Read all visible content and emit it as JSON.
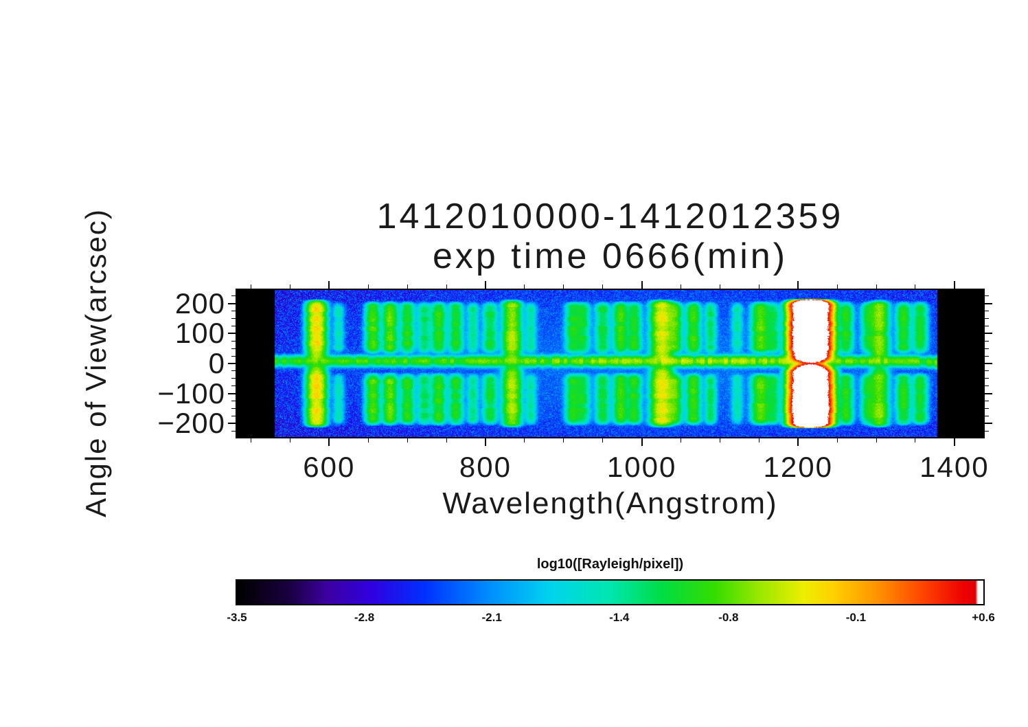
{
  "title": {
    "line1": "1412010000-1412012359",
    "line2": "exp time 0666(min)"
  },
  "axes": {
    "x": {
      "label": "Wavelength(Angstrom)",
      "ticks": [
        600,
        800,
        1000,
        1200,
        1400
      ],
      "tick_labels": [
        "600",
        "800",
        "1000",
        "1200",
        "1400"
      ],
      "minor_step": 50,
      "range": [
        482,
        1437
      ]
    },
    "y": {
      "label": "Angle of View(arcsec)",
      "ticks": [
        200,
        100,
        0,
        -100,
        -200
      ],
      "tick_labels": [
        "200",
        "100",
        "0",
        "−100",
        "−200"
      ],
      "minor_step": 25,
      "range": [
        -245,
        245
      ]
    }
  },
  "colorbar": {
    "label": "log10([Rayleigh/pixel])",
    "tick_values": [
      -3.5,
      -2.8,
      -2.1,
      -1.4,
      -0.8,
      -0.1,
      0.6
    ],
    "tick_labels": [
      "-3.5",
      "-2.8",
      "-2.1",
      "-1.4",
      "-0.8",
      "-0.1",
      "+0.6"
    ],
    "range": [
      -3.5,
      0.6
    ]
  },
  "chart_data": {
    "type": "heatmap",
    "title": "1412010000-1412012359 exp time 0666(min)",
    "xlabel": "Wavelength(Angstrom)",
    "ylabel": "Angle of View(arcsec)",
    "zlabel": "log10([Rayleigh/pixel])",
    "x_range": [
      482,
      1437
    ],
    "detector_x_range": [
      530,
      1378
    ],
    "y_range": [
      -245,
      245
    ],
    "z_range": [
      -3.5,
      0.6
    ],
    "background_log10": -2.9,
    "colormap_stops": [
      [
        0.0,
        "#000000"
      ],
      [
        0.07,
        "#1a0040"
      ],
      [
        0.12,
        "#3c00a0"
      ],
      [
        0.18,
        "#3000e0"
      ],
      [
        0.25,
        "#0030ff"
      ],
      [
        0.34,
        "#0090ff"
      ],
      [
        0.42,
        "#00d4ee"
      ],
      [
        0.5,
        "#00e6b0"
      ],
      [
        0.57,
        "#00dd44"
      ],
      [
        0.64,
        "#33dd00"
      ],
      [
        0.7,
        "#99e800"
      ],
      [
        0.76,
        "#eeee00"
      ],
      [
        0.8,
        "#ffd000"
      ],
      [
        0.86,
        "#ff9100"
      ],
      [
        0.92,
        "#ff4400"
      ],
      [
        0.975,
        "#ee0000"
      ],
      [
        0.99,
        "#dd0000"
      ],
      [
        0.993,
        "#ffffff"
      ],
      [
        1.0,
        "#ffffff"
      ]
    ],
    "emission_lines": [
      {
        "wavelength": 584,
        "peak": -0.3,
        "sigma": 6,
        "shape": "full"
      },
      {
        "wavelength": 612,
        "peak": -1.6,
        "sigma": 4,
        "shape": "lobes"
      },
      {
        "wavelength": 656,
        "peak": -0.85,
        "sigma": 5,
        "shape": "lobes"
      },
      {
        "wavelength": 678,
        "peak": -0.8,
        "sigma": 5,
        "shape": "lobes"
      },
      {
        "wavelength": 700,
        "peak": -1.0,
        "sigma": 5,
        "shape": "lobes"
      },
      {
        "wavelength": 722,
        "peak": -1.25,
        "sigma": 5,
        "shape": "lobes"
      },
      {
        "wavelength": 740,
        "peak": -0.95,
        "sigma": 5,
        "shape": "lobes"
      },
      {
        "wavelength": 762,
        "peak": -1.05,
        "sigma": 5,
        "shape": "lobes"
      },
      {
        "wavelength": 784,
        "peak": -1.4,
        "sigma": 4,
        "shape": "lobes"
      },
      {
        "wavelength": 806,
        "peak": -1.15,
        "sigma": 5,
        "shape": "lobes"
      },
      {
        "wavelength": 834,
        "peak": -0.6,
        "sigma": 6,
        "shape": "full"
      },
      {
        "wavelength": 858,
        "peak": -1.5,
        "sigma": 4,
        "shape": "lobes"
      },
      {
        "wavelength": 912,
        "peak": -1.05,
        "sigma": 5,
        "shape": "lobes"
      },
      {
        "wavelength": 924,
        "peak": -1.15,
        "sigma": 5,
        "shape": "lobes"
      },
      {
        "wavelength": 950,
        "peak": -1.15,
        "sigma": 5,
        "shape": "lobes"
      },
      {
        "wavelength": 973,
        "peak": -0.9,
        "sigma": 5,
        "shape": "lobes"
      },
      {
        "wavelength": 990,
        "peak": -1.0,
        "sigma": 5,
        "shape": "lobes"
      },
      {
        "wavelength": 1026,
        "peak": -0.4,
        "sigma": 7,
        "shape": "full"
      },
      {
        "wavelength": 1042,
        "peak": -0.85,
        "sigma": 5,
        "shape": "lobes"
      },
      {
        "wavelength": 1066,
        "peak": -0.9,
        "sigma": 5,
        "shape": "lobes"
      },
      {
        "wavelength": 1088,
        "peak": -1.3,
        "sigma": 4,
        "shape": "lobes"
      },
      {
        "wavelength": 1122,
        "peak": -1.55,
        "sigma": 4,
        "shape": "lobes"
      },
      {
        "wavelength": 1152,
        "peak": -0.8,
        "sigma": 6,
        "shape": "lobes"
      },
      {
        "wavelength": 1168,
        "peak": -1.2,
        "sigma": 5,
        "shape": "lobes"
      },
      {
        "wavelength": 1216,
        "peak": 2.0,
        "sigma": 9,
        "shape": "saturated"
      },
      {
        "wavelength": 1243,
        "peak": -1.3,
        "sigma": 4,
        "shape": "lobes"
      },
      {
        "wavelength": 1261,
        "peak": -1.0,
        "sigma": 5,
        "shape": "lobes"
      },
      {
        "wavelength": 1290,
        "peak": -1.1,
        "sigma": 5,
        "shape": "lobes"
      },
      {
        "wavelength": 1304,
        "peak": -0.7,
        "sigma": 6,
        "shape": "full"
      },
      {
        "wavelength": 1335,
        "peak": -1.0,
        "sigma": 5,
        "shape": "lobes"
      },
      {
        "wavelength": 1356,
        "peak": -1.1,
        "sigma": 5,
        "shape": "lobes"
      }
    ],
    "central_streak": {
      "angle_center": 8,
      "angle_sigma": 9,
      "log10_peak": -0.95,
      "wavelength_peak": 1080
    }
  }
}
